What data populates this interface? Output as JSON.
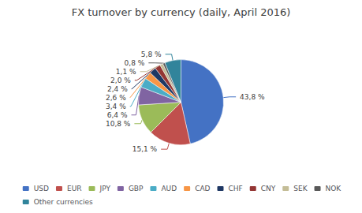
{
  "chart_data": {
    "type": "pie",
    "title": "FX turnover by currency (daily, April 2016)",
    "categories": [
      "USD",
      "EUR",
      "JPY",
      "GBP",
      "AUD",
      "CAD",
      "CHF",
      "CNY",
      "SEK",
      "NOK",
      "Other currencies"
    ],
    "values": [
      43.8,
      15.1,
      10.8,
      6.4,
      3.4,
      2.6,
      2.4,
      2.0,
      1.1,
      0.8,
      5.8
    ],
    "value_labels": [
      "43,8 %",
      "15,1 %",
      "10,8 %",
      "6,4 %",
      "3,4 %",
      "2,6 %",
      "2,4 %",
      "2,0 %",
      "1,1 %",
      "0,8 %",
      "5,8 %"
    ],
    "colors": [
      "#4472C4",
      "#C0504D",
      "#9BBB59",
      "#8064A2",
      "#4BACC6",
      "#F79646",
      "#1F3864",
      "#943634",
      "#C4BD97",
      "#595959",
      "#31849B"
    ],
    "data_labels": true,
    "legend": "bottom"
  }
}
